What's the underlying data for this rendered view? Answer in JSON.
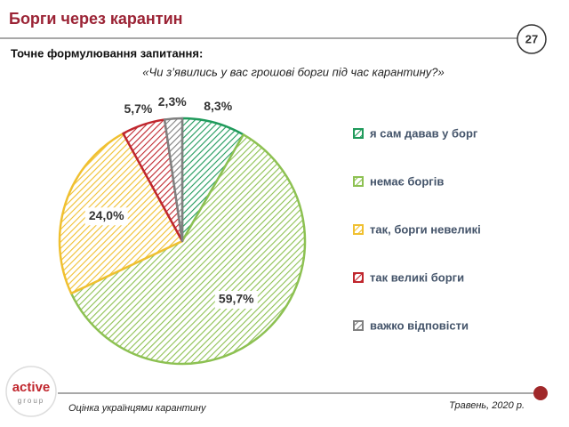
{
  "header": {
    "title": "Борги через карантин",
    "page_number": "27",
    "question_label": "Точне формулювання запитання:"
  },
  "chart_data": {
    "type": "pie",
    "subtitle": "«Чи з’явились у вас грошові борги під час карантину?»",
    "categories": [
      "я сам давав у борг",
      "немає боргів",
      "так, борги невеликі",
      "так великі борги",
      "важко відповісти"
    ],
    "values": [
      8.3,
      59.7,
      24.0,
      5.7,
      2.3
    ],
    "value_labels": [
      "8,3%",
      "59,7%",
      "24,0%",
      "5,7%",
      "2,3%"
    ],
    "colors": [
      "#1f9a5b",
      "#8dc152",
      "#f0c030",
      "#c0262d",
      "#808080"
    ]
  },
  "footer": {
    "logo_main": "active",
    "logo_sub": "group",
    "note": "Оцінка українцями карантину",
    "date": "Травень, 2020 р."
  }
}
